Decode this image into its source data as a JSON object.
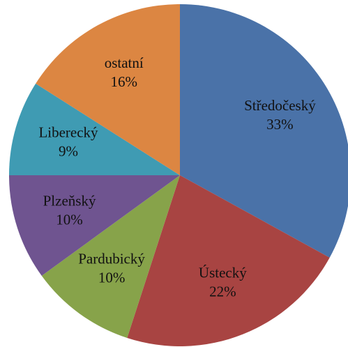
{
  "chart_data": {
    "type": "pie",
    "categories": [
      "Středočeský",
      "Ústecký",
      "Pardubický",
      "Plzeňský",
      "Liberecký",
      "ostatní"
    ],
    "values": [
      33,
      22,
      10,
      10,
      9,
      16
    ],
    "value_labels": [
      "33%",
      "22%",
      "10%",
      "10%",
      "9%",
      "16%"
    ],
    "colors": [
      "#4a72a8",
      "#a84442",
      "#87a34a",
      "#6f5490",
      "#3f9bb3",
      "#dc8642"
    ]
  }
}
